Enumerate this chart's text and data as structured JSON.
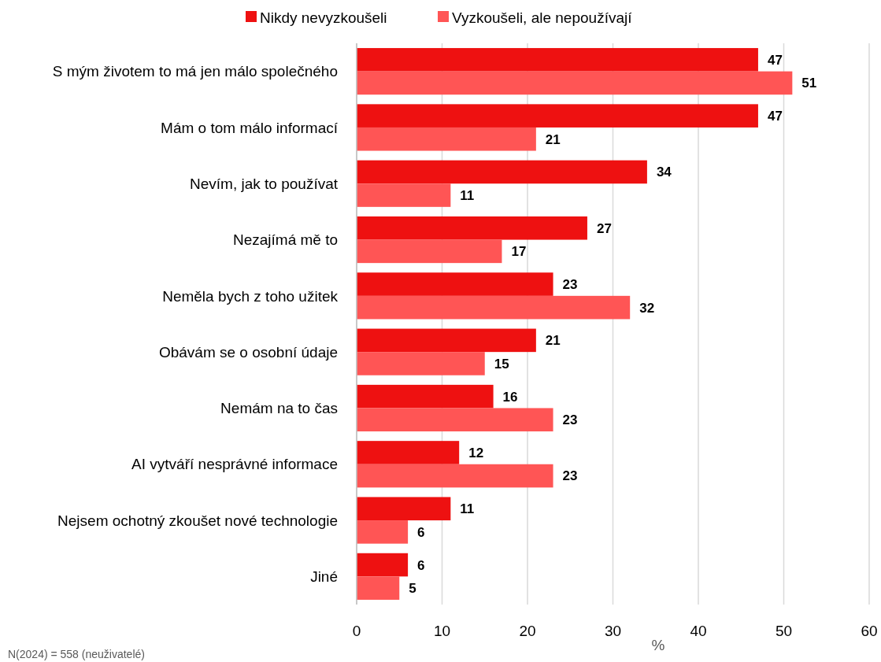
{
  "chart_data": {
    "type": "bar",
    "orientation": "horizontal",
    "categories": [
      "S mým životem to má jen málo společného",
      "Mám o tom málo informací",
      "Nevím, jak to používat",
      "Nezajímá mě to",
      "Neměla bych z toho užitek",
      "Obávám se o osobní údaje",
      "Nemám na to čas",
      "AI vytváří nesprávné informace",
      "Nejsem ochotný zkoušet nové technologie",
      "Jiné"
    ],
    "series": [
      {
        "name": "Nikdy nevyzkoušeli",
        "color": "#ee1111",
        "values": [
          47,
          47,
          34,
          27,
          23,
          21,
          16,
          12,
          11,
          6
        ]
      },
      {
        "name": "Vyzkoušeli, ale nepoužívají",
        "color": "#ff5555",
        "values": [
          51,
          21,
          11,
          17,
          32,
          15,
          23,
          23,
          6,
          5
        ]
      }
    ],
    "xlim": [
      0,
      60
    ],
    "xticks": [
      0,
      10,
      20,
      30,
      40,
      50,
      60
    ],
    "xlabel": "%",
    "grid": "x",
    "legend": "top",
    "data_labels": true,
    "annotations": [
      "N(2024) = 558 (neuživatelé)"
    ]
  }
}
